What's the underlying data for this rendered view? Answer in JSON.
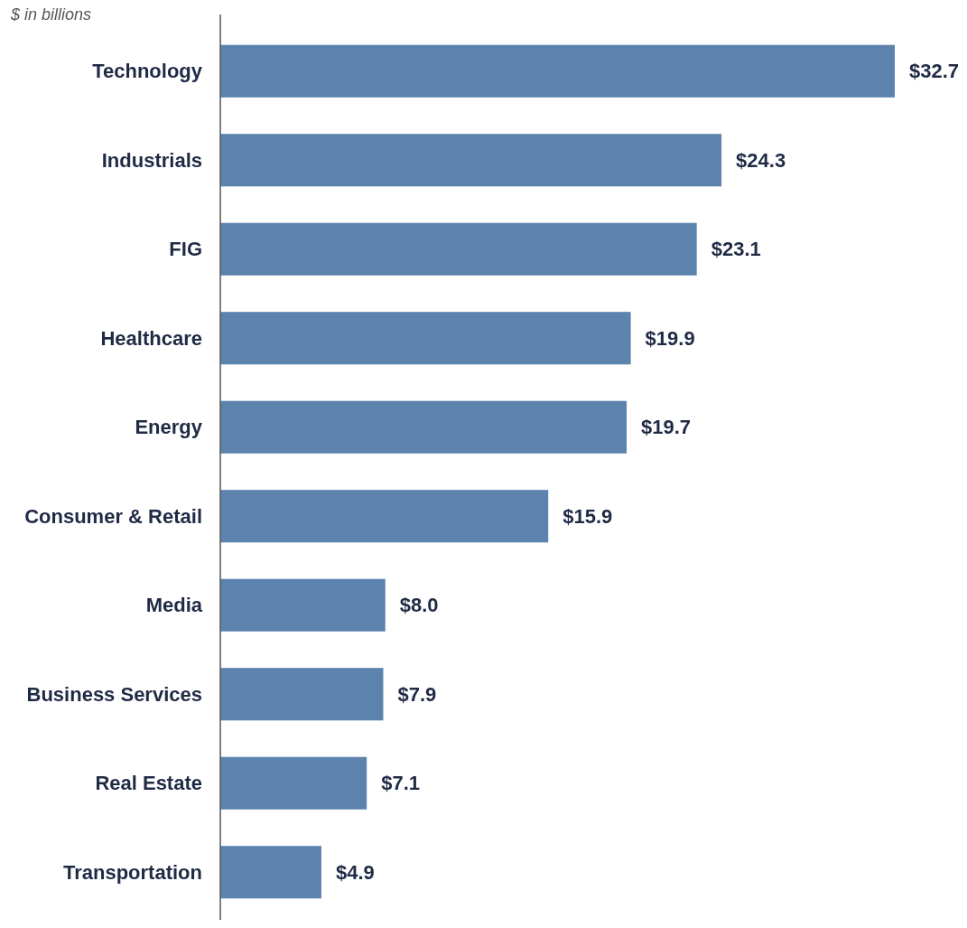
{
  "chart_data": {
    "type": "bar",
    "orientation": "horizontal",
    "subtitle": "$ in billions",
    "categories": [
      "Technology",
      "Industrials",
      "FIG",
      "Healthcare",
      "Energy",
      "Consumer & Retail",
      "Media",
      "Business Services",
      "Real Estate",
      "Transportation"
    ],
    "values": [
      32.7,
      24.3,
      23.1,
      19.9,
      19.7,
      15.9,
      8.0,
      7.9,
      7.1,
      4.9
    ],
    "value_labels": [
      "$32.7",
      "$24.3",
      "$23.1",
      "$19.9",
      "$19.7",
      "$15.9",
      "$8.0",
      "$7.9",
      "$7.1",
      "$4.9"
    ],
    "color": "#5b83ae"
  }
}
